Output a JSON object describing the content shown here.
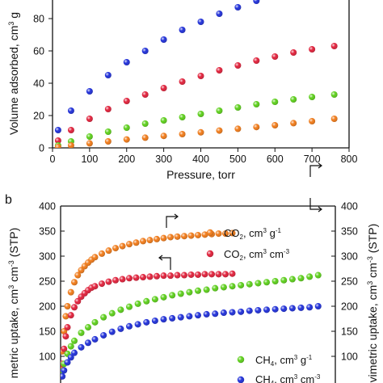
{
  "chart_data": [
    {
      "panel_label": "",
      "type": "scatter",
      "xlabel": "Pressure, torr",
      "ylabel": "Volume adsorbed, cm",
      "ylabel_sup": "3",
      "ylabel_tail": " g",
      "xlim": [
        0,
        800
      ],
      "ylim": [
        0,
        100
      ],
      "xticks": [
        "0",
        "100",
        "200",
        "300",
        "400",
        "500",
        "600",
        "700",
        "800"
      ],
      "yticks": [
        "0",
        "20",
        "40",
        "60",
        "80"
      ],
      "series": [
        {
          "color": "#1f2fd8",
          "x": [
            15,
            50,
            100,
            150,
            200,
            250,
            300,
            350,
            400,
            450,
            500,
            550
          ],
          "y": [
            11,
            23,
            35,
            45,
            53,
            60,
            67,
            73,
            78,
            83,
            87,
            91
          ]
        },
        {
          "color": "#e0203a",
          "x": [
            15,
            50,
            100,
            150,
            200,
            250,
            300,
            350,
            400,
            450,
            500,
            550,
            600,
            650,
            700,
            760
          ],
          "y": [
            4.5,
            11,
            18,
            24,
            29,
            33,
            37,
            41,
            44.5,
            48,
            51,
            54,
            56.5,
            59,
            61,
            63
          ]
        },
        {
          "color": "#5ccf1a",
          "x": [
            15,
            50,
            100,
            150,
            200,
            250,
            300,
            350,
            400,
            450,
            500,
            550,
            600,
            650,
            700,
            760
          ],
          "y": [
            1.5,
            4,
            7,
            10,
            12.5,
            15,
            17,
            19,
            21,
            23,
            25,
            27,
            28.5,
            30,
            31.5,
            33
          ]
        },
        {
          "color": "#f07a18",
          "x": [
            15,
            50,
            100,
            150,
            200,
            250,
            300,
            350,
            400,
            450,
            500,
            550,
            600,
            650,
            700,
            760
          ],
          "y": [
            0.5,
            1.5,
            2.8,
            4,
            5.2,
            6.3,
            7.4,
            8.5,
            9.6,
            10.7,
            11.8,
            12.9,
            14,
            15.3,
            16.5,
            18
          ]
        }
      ]
    },
    {
      "panel_label": "b",
      "type": "scatter",
      "ylabel_left": "metric uptake, cm",
      "ylabel_left_sup": "3",
      "ylabel_left_tail": " cm",
      "ylabel_left_sup2": "-3",
      "ylabel_left_end": " (STP)",
      "ylabel_right": "vimetric uptake, cm",
      "ylabel_right_sup": "3",
      "ylabel_right_tail": " cm",
      "ylabel_right_sup2": "-3",
      "ylabel_right_end": " (STP)",
      "xlim": [
        0,
        800
      ],
      "ylim": [
        0,
        400
      ],
      "yticks": [
        "100",
        "150",
        "200",
        "250",
        "300",
        "350",
        "400"
      ],
      "legend": [
        {
          "label": "CO",
          "sub": "2",
          "unit": ", cm",
          "sup": "3",
          "unit2": " g",
          "sup2": "-1",
          "color": "#f07a18"
        },
        {
          "label": "CO",
          "sub": "2",
          "unit": ", cm",
          "sup": "3",
          "unit2": " cm",
          "sup2": "-3",
          "color": "#e0203a"
        },
        {
          "label": "CH",
          "sub": "4",
          "unit": ", cm",
          "sup": "3",
          "unit2": " g",
          "sup2": "-1",
          "color": "#5ccf1a"
        },
        {
          "label": "CH",
          "sub": "4",
          "unit": ", cm",
          "sup": "3",
          "unit2": " cm",
          "sup2": "-3",
          "color": "#1f2fd8"
        }
      ],
      "series": [
        {
          "color": "#f07a18",
          "x": [
            2,
            5,
            10,
            15,
            20,
            30,
            40,
            50,
            60,
            70,
            80,
            90,
            100,
            120,
            140,
            160,
            180,
            200,
            220,
            240,
            260,
            280,
            300,
            320,
            340,
            360,
            380,
            400,
            420,
            440,
            460,
            480,
            500
          ],
          "y": [
            80,
            110,
            150,
            180,
            200,
            228,
            248,
            262,
            272,
            280,
            287,
            293,
            298,
            305,
            311,
            316,
            320,
            324,
            327,
            330,
            332,
            334,
            336,
            338,
            339,
            340,
            341,
            342,
            343,
            344,
            345,
            345,
            346
          ]
        },
        {
          "color": "#e0203a",
          "x": [
            2,
            5,
            10,
            15,
            20,
            30,
            40,
            50,
            60,
            70,
            80,
            90,
            100,
            120,
            140,
            160,
            180,
            200,
            220,
            240,
            260,
            280,
            300,
            320,
            340,
            360,
            380,
            400,
            420,
            440,
            460,
            480,
            500
          ],
          "y": [
            60,
            85,
            115,
            140,
            158,
            182,
            198,
            210,
            219,
            226,
            232,
            237,
            240,
            245,
            249,
            252,
            254,
            256,
            257,
            258,
            259,
            260,
            261,
            261,
            262,
            262,
            263,
            263,
            264,
            264,
            264,
            264,
            265
          ]
        },
        {
          "color": "#5ccf1a",
          "x": [
            5,
            10,
            20,
            30,
            40,
            60,
            80,
            100,
            125,
            150,
            175,
            200,
            225,
            250,
            275,
            300,
            325,
            350,
            375,
            400,
            425,
            450,
            475,
            500,
            525,
            550,
            575,
            600,
            625,
            650,
            675,
            700,
            725,
            750
          ],
          "y": [
            70,
            85,
            105,
            120,
            131,
            147,
            158,
            168,
            178,
            186,
            193,
            199,
            205,
            210,
            214,
            218,
            222,
            225,
            228,
            231,
            233,
            236,
            238,
            240,
            242,
            244,
            246,
            248,
            250,
            252,
            254,
            256,
            259,
            262
          ]
        },
        {
          "color": "#1f2fd8",
          "x": [
            5,
            10,
            20,
            30,
            40,
            60,
            80,
            100,
            125,
            150,
            175,
            200,
            225,
            250,
            275,
            300,
            325,
            350,
            375,
            400,
            425,
            450,
            475,
            500,
            525,
            550,
            575,
            600,
            625,
            650,
            675,
            700,
            725,
            750
          ],
          "y": [
            60,
            72,
            88,
            98,
            107,
            118,
            127,
            134,
            142,
            149,
            155,
            160,
            164,
            168,
            171,
            174,
            176,
            178,
            180,
            182,
            184,
            185,
            187,
            188,
            189,
            191,
            192,
            193,
            194,
            195,
            196,
            197,
            198,
            200
          ]
        }
      ]
    }
  ]
}
